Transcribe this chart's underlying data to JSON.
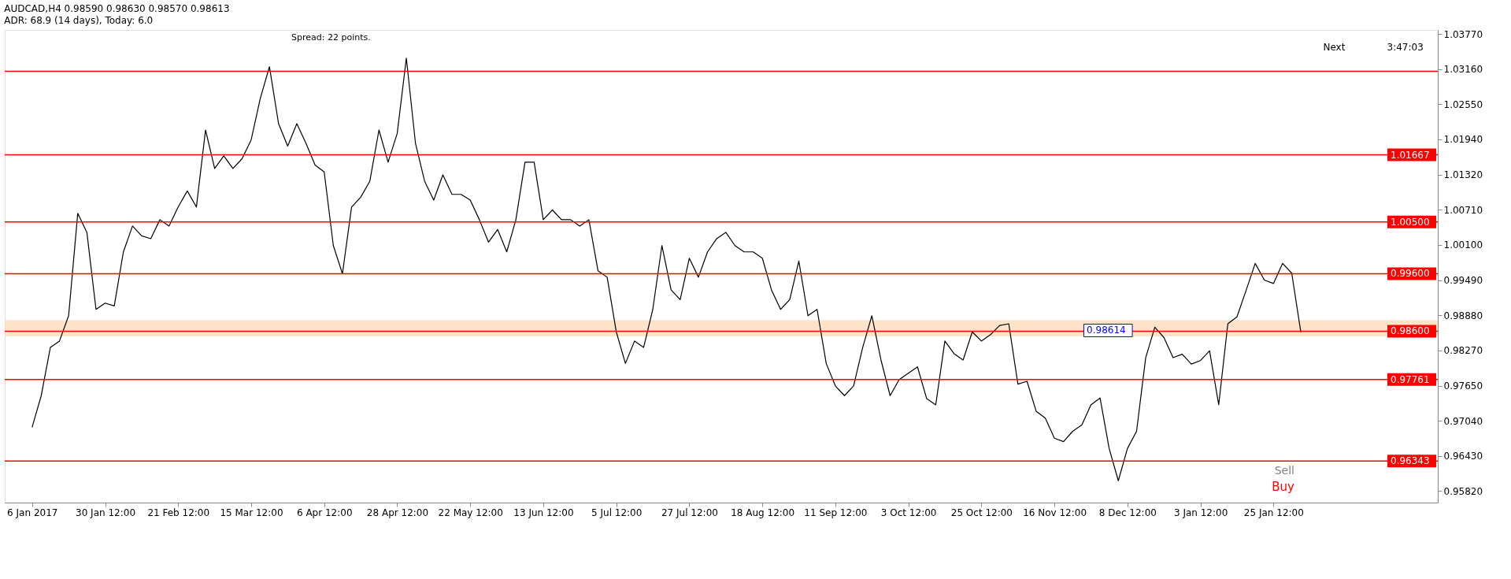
{
  "chart_data": {
    "type": "line",
    "title": "AUDCAD,H4  0.98590 0.98630 0.98570 0.98613",
    "subtitle": "ADR: 68.9 (14 days), Today: 6.0",
    "categories": [
      "6 Jan 2017",
      null,
      null,
      null,
      null,
      null,
      null,
      null,
      "30 Jan 12:00",
      null,
      null,
      null,
      null,
      null,
      null,
      null,
      "21 Feb 12:00",
      null,
      null,
      null,
      null,
      null,
      null,
      null,
      "15 Mar 12:00",
      null,
      null,
      null,
      null,
      null,
      null,
      null,
      "6 Apr 12:00",
      null,
      null,
      null,
      null,
      null,
      null,
      null,
      "28 Apr 12:00",
      null,
      null,
      null,
      null,
      null,
      null,
      null,
      "22 May 12:00",
      null,
      null,
      null,
      null,
      null,
      null,
      null,
      "13 Jun 12:00",
      null,
      null,
      null,
      null,
      null,
      null,
      null,
      "5 Jul 12:00",
      null,
      null,
      null,
      null,
      null,
      null,
      null,
      "27 Jul 12:00",
      null,
      null,
      null,
      null,
      null,
      null,
      null,
      "18 Aug 12:00",
      null,
      null,
      null,
      null,
      null,
      null,
      null,
      "11 Sep 12:00",
      null,
      null,
      null,
      null,
      null,
      null,
      null,
      "3 Oct 12:00",
      null,
      null,
      null,
      null,
      null,
      null,
      null,
      "25 Oct 12:00",
      null,
      null,
      null,
      null,
      null,
      null,
      null,
      "16 Nov 12:00",
      null,
      null,
      null,
      null,
      null,
      null,
      null,
      "8 Dec 12:00",
      null,
      null,
      null,
      null,
      null,
      null,
      null,
      "3 Jan 12:00",
      null,
      null,
      null,
      null,
      null,
      null,
      null,
      "25 Jan 12:00",
      null,
      null,
      null,
      null,
      null,
      null,
      null,
      null,
      null,
      null,
      null,
      null,
      null,
      null,
      null,
      null,
      null,
      null
    ],
    "series": [
      {
        "color": "#000000",
        "values": [
          0.9693,
          0.9748,
          0.9832,
          0.9843,
          0.9887,
          1.0065,
          1.0032,
          0.9898,
          0.9909,
          0.9904,
          0.9998,
          1.0043,
          1.0026,
          1.0021,
          1.0054,
          1.0043,
          1.0076,
          1.0104,
          1.0076,
          1.021,
          1.0143,
          1.0165,
          1.0143,
          1.016,
          1.0193,
          1.0265,
          1.032,
          1.0221,
          1.0182,
          1.0221,
          1.0187,
          1.0149,
          1.0137,
          1.0009,
          0.996,
          1.0076,
          1.0093,
          1.0121,
          1.021,
          1.0154,
          1.0204,
          1.0335,
          1.0187,
          1.0121,
          1.0088,
          1.0132,
          1.0098,
          1.0098,
          1.0088,
          1.0054,
          1.0015,
          1.0037,
          0.9998,
          1.0054,
          1.0154,
          1.0154,
          1.0054,
          1.0071,
          1.0054,
          1.0054,
          1.0043,
          1.0054,
          0.9965,
          0.9954,
          0.9859,
          0.9804,
          0.9843,
          0.9832,
          0.9898,
          1.0009,
          0.9932,
          0.9915,
          0.9987,
          0.9954,
          0.9998,
          1.0021,
          1.0032,
          1.0009,
          0.9998,
          0.9998,
          0.9987,
          0.9932,
          0.9898,
          0.9915,
          0.9982,
          0.9887,
          0.9898,
          0.9804,
          0.9765,
          0.9748,
          0.9765,
          0.9832,
          0.9887,
          0.981,
          0.9748,
          0.9776,
          0.9787,
          0.9798,
          0.9743,
          0.9732,
          0.9843,
          0.9821,
          0.981,
          0.9859,
          0.9843,
          0.9854,
          0.987,
          0.9873,
          0.9768,
          0.9773,
          0.9721,
          0.9709,
          0.9674,
          0.9668,
          0.9686,
          0.9697,
          0.9732,
          0.9744,
          0.9656,
          0.96,
          0.9656,
          0.9686,
          0.9814,
          0.9867,
          0.9849,
          0.9814,
          0.982,
          0.9803,
          0.9809,
          0.9826,
          0.9732,
          0.9873,
          0.9885,
          0.9931,
          0.9978,
          0.9949,
          0.9943,
          0.9978,
          0.9961,
          0.9858,
          null,
          null,
          null,
          null,
          null,
          null,
          null,
          null,
          null,
          null,
          null,
          null,
          null,
          null,
          null
        ]
      }
    ],
    "ylim": [
      0.9562,
      1.0384
    ],
    "yticks": [
      {
        "value": 1.0377,
        "label": "1.03770"
      },
      {
        "value": 1.0316,
        "label": "1.03160"
      },
      {
        "value": 1.0255,
        "label": "1.02550"
      },
      {
        "value": 1.0194,
        "label": "1.01940"
      },
      {
        "value": 1.0132,
        "label": "1.01320"
      },
      {
        "value": 1.0071,
        "label": "1.00710"
      },
      {
        "value": 1.001,
        "label": "1.00100"
      },
      {
        "value": 0.9949,
        "label": "0.99490"
      },
      {
        "value": 0.9888,
        "label": "0.98880"
      },
      {
        "value": 0.9827,
        "label": "0.98270"
      },
      {
        "value": 0.9765,
        "label": "0.97650"
      },
      {
        "value": 0.9704,
        "label": "0.97040"
      },
      {
        "value": 0.9643,
        "label": "0.96430"
      },
      {
        "value": 0.9582,
        "label": "0.95820"
      }
    ],
    "ref_lines": [
      {
        "axis": "y",
        "value": 1.0312,
        "label": null,
        "color": "#ff0000"
      },
      {
        "axis": "y",
        "value": 1.01667,
        "label": "1.01667",
        "color": "#ff0000"
      },
      {
        "axis": "y",
        "value": 1.005,
        "label": "1.00500",
        "color": "#ff0000"
      },
      {
        "axis": "y",
        "value": 0.996,
        "label": "0.99600",
        "color": "#ff0000"
      },
      {
        "axis": "y",
        "value": 0.986,
        "label": "0.98600",
        "color": "#ff0000"
      },
      {
        "axis": "y",
        "value": 0.97761,
        "label": "0.97761",
        "color": "#ff0000"
      },
      {
        "axis": "y",
        "value": 0.96343,
        "label": "0.96343",
        "color": "#ff0000"
      }
    ],
    "bands": [
      {
        "axis": "y",
        "from": 0.9851,
        "to": 0.9879,
        "label": null,
        "color": "#fde0c2"
      }
    ],
    "annotations": [
      "Spread: 22 points.",
      "Next",
      "3:47:03",
      "Sell",
      "Buy",
      {
        "text": "0.98614",
        "y": 0.98614
      }
    ],
    "grid": false,
    "line_style": "solid",
    "marker": "none"
  }
}
